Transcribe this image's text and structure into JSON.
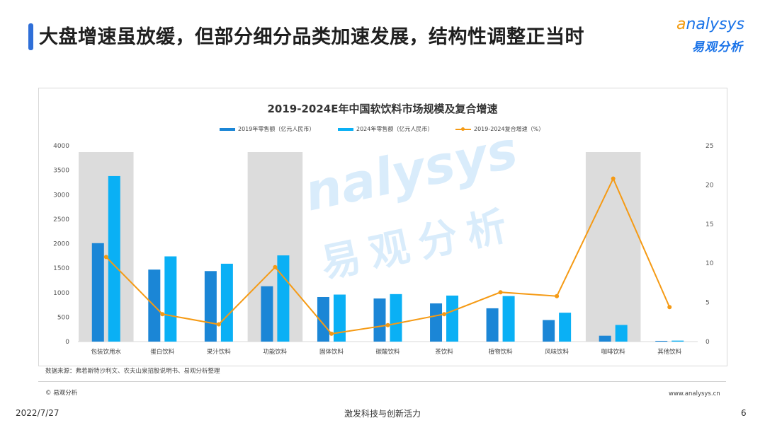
{
  "header": {
    "title": "大盘增速虽放缓，但部分细分品类加速发展，结构性调整正当时",
    "logo_en_first": "a",
    "logo_en_rest": "nalysys",
    "logo_cn": "易观分析"
  },
  "watermark": {
    "en_first": "a",
    "en_rest": "nalysys",
    "cn": "易观分析"
  },
  "footer": {
    "source": "数据来源：弗若斯特沙利文、农夫山泉招股说明书、易观分析整理",
    "copyright": "© 易观分析",
    "website": "www.analysys.cn",
    "date": "2022/7/27",
    "slogan": "激发科技与创新活力",
    "page": "6"
  },
  "colors": {
    "bar2019": "#1b86d6",
    "bar2024": "#0ab0f5",
    "line": "#f59a14",
    "highlight": "#dcdcdc"
  },
  "chart_data": {
    "type": "bar",
    "title": "2019-2024E年中国软饮料市场规模及复合增速",
    "categories": [
      "包装饮用水",
      "蛋白饮料",
      "果汁饮料",
      "功能饮料",
      "固体饮料",
      "碳酸饮料",
      "茶饮料",
      "植物饮料",
      "风味饮料",
      "咖啡饮料",
      "其他饮料"
    ],
    "series": [
      {
        "name": "2019年零售额（亿元人民币）",
        "type": "bar",
        "axis": "left",
        "values": [
          2010,
          1470,
          1440,
          1130,
          910,
          880,
          780,
          680,
          440,
          120,
          15
        ]
      },
      {
        "name": "2024年零售额（亿元人民币）",
        "type": "bar",
        "axis": "left",
        "values": [
          3380,
          1740,
          1590,
          1760,
          960,
          970,
          940,
          930,
          590,
          340,
          20
        ]
      },
      {
        "name": "2019-2024复合增速（%）",
        "type": "line",
        "axis": "right",
        "values": [
          10.8,
          3.5,
          2.2,
          9.5,
          1.0,
          2.1,
          3.5,
          6.3,
          5.8,
          20.8,
          4.4
        ]
      }
    ],
    "highlighted_categories": [
      "包装饮用水",
      "功能饮料",
      "咖啡饮料"
    ],
    "y_left": {
      "min": 0,
      "max": 4000,
      "ticks": [
        0,
        500,
        1000,
        1500,
        2000,
        2500,
        3000,
        3500,
        4000
      ]
    },
    "y_right": {
      "min": 0,
      "max": 25,
      "ticks": [
        0,
        5,
        10,
        15,
        20,
        25
      ]
    },
    "legend_position": "top-center",
    "grid": false
  }
}
